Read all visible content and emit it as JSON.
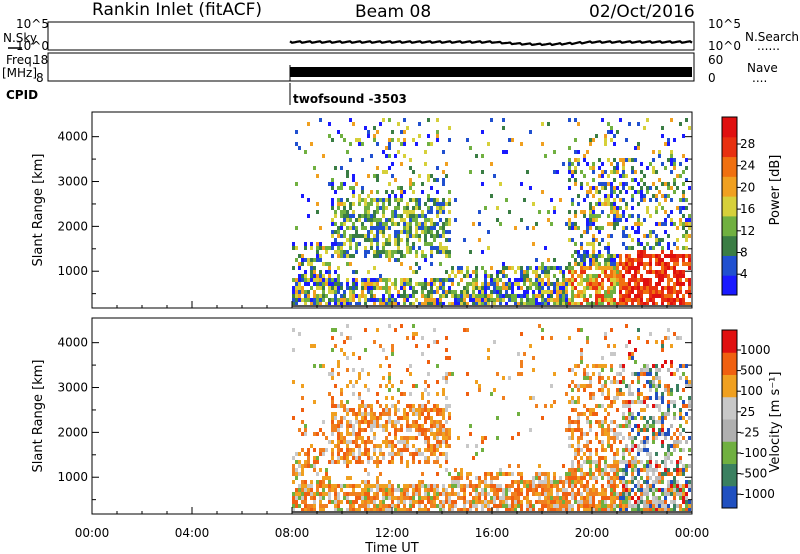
{
  "header": {
    "station": "Rankin Inlet (fitACF)",
    "beam": "Beam 08",
    "date": "02/Oct/2016"
  },
  "top_panel_labels": {
    "nsky": "N.Sky",
    "nsearch": "N.Search",
    "nsearch_dots": "......",
    "freq": "Freq.",
    "mhz": "[MHz]",
    "nave": "Nave",
    "nave_dots": "....",
    "cpid": "CPID",
    "cpid_value": "twofsound -3503",
    "noise_left_ticks": [
      "10^5",
      "10^0"
    ],
    "noise_right_ticks": [
      "10^5",
      "10^0"
    ],
    "freq_ticks": [
      "18",
      "8"
    ],
    "nave_ticks": [
      "60",
      "0"
    ]
  },
  "colors": {
    "power_scale": [
      "#1a1aff",
      "#2050d0",
      "#3a7d44",
      "#70b040",
      "#d6d03a",
      "#f0a020",
      "#f07010",
      "#e83010",
      "#e01010"
    ],
    "velocity_scale": [
      "#e01010",
      "#f06010",
      "#f0a020",
      "#c8c8c8",
      "#b0b0b0",
      "#70b040",
      "#3a8060",
      "#2050c0"
    ]
  },
  "chart_data": [
    {
      "type": "heatmap",
      "name": "Power",
      "ylabel": "Slant Range [km]",
      "yticks": [
        "4000",
        "3000",
        "2000",
        "1000"
      ],
      "ylim": [
        180,
        4550
      ],
      "xlim": [
        0,
        24
      ],
      "colorbar_label": "Power [dB]",
      "colorbar_ticks": [
        "28",
        "24",
        "20",
        "16",
        "12",
        "8",
        "4"
      ],
      "colorbar_range": [
        0,
        30
      ],
      "data_start_hour": 8.0,
      "data_end_hour": 24.0
    },
    {
      "type": "heatmap",
      "name": "Velocity",
      "ylabel": "Slant Range [km]",
      "yticks": [
        "4000",
        "3000",
        "2000",
        "1000"
      ],
      "ylim": [
        180,
        4550
      ],
      "xlim": [
        0,
        24
      ],
      "colorbar_label": "Velocity [m s⁻¹]",
      "colorbar_ticks": [
        "1000",
        "500",
        "100",
        "25",
        "-25",
        "-100",
        "-500",
        "-1000"
      ],
      "data_start_hour": 8.0,
      "data_end_hour": 24.0
    }
  ],
  "xaxis": {
    "ticks": [
      "00:00",
      "04:00",
      "08:00",
      "12:00",
      "16:00",
      "20:00",
      "00:00"
    ],
    "label": "Time UT"
  }
}
